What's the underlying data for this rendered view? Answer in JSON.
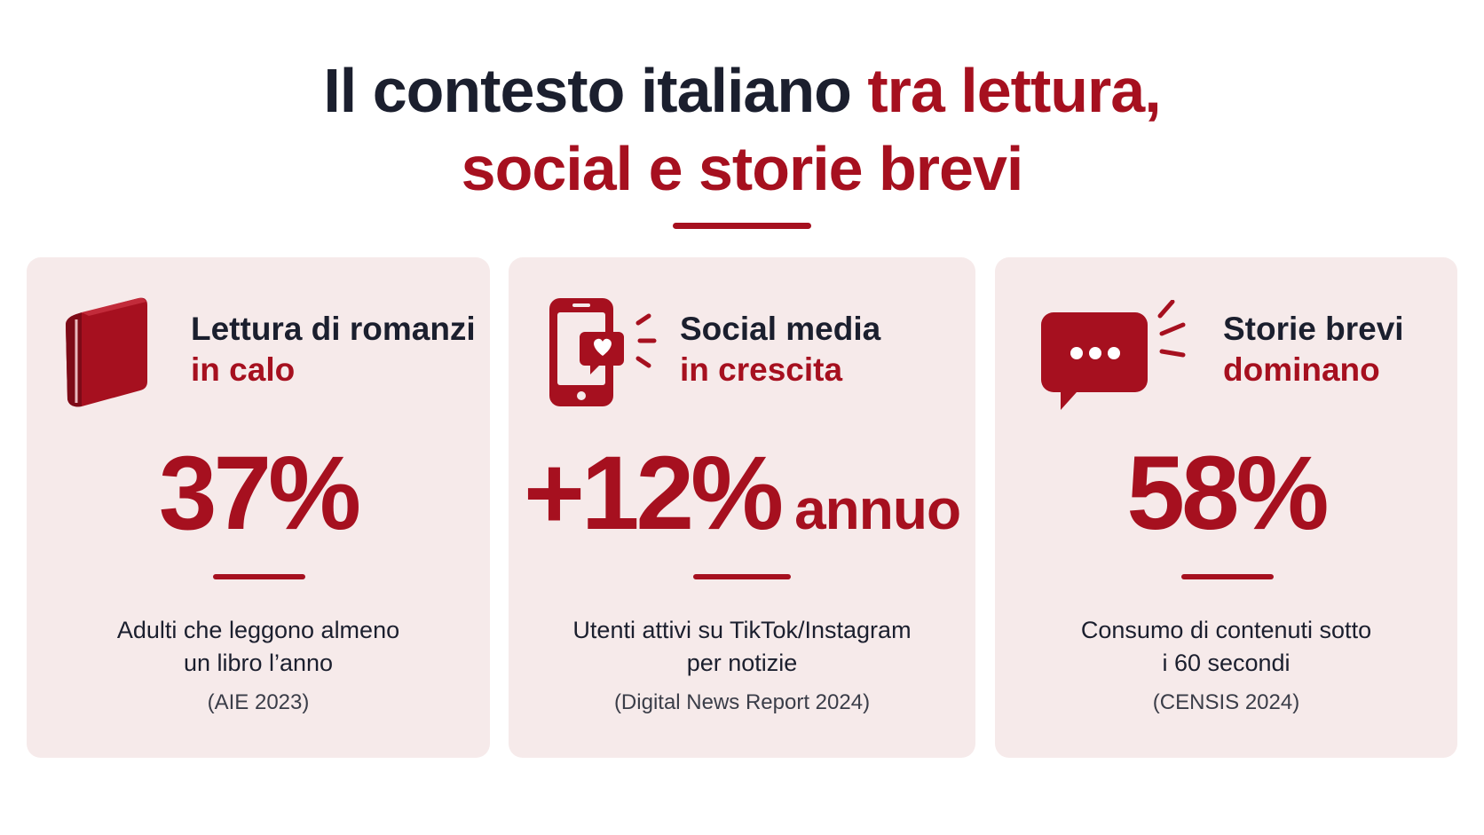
{
  "title": {
    "line1_dark": "Il contesto italiano",
    "line1_red": "tra lettura,",
    "line2_red_a": "social e storie brevi"
  },
  "colors": {
    "accent": "#a6101f",
    "text_dark": "#1b1f2e",
    "card_bg": "#f6eaea"
  },
  "cards": [
    {
      "icon": "book-icon",
      "heading_line1": "Lettura di romanzi",
      "heading_line2": "in calo",
      "stat": "37%",
      "stat_suffix": "",
      "desc_line1": "Adulti che leggono almeno",
      "desc_line2": "un libro l’anno",
      "source": "(AIE 2023)"
    },
    {
      "icon": "phone-heart-icon",
      "heading_line1": "Social media",
      "heading_line2": "in crescita",
      "stat": "+12%",
      "stat_suffix": "annuo",
      "desc_line1": "Utenti attivi su TikTok/Instagram",
      "desc_line2": "per notizie",
      "source": "(Digital News Report 2024)"
    },
    {
      "icon": "speech-bubble-icon",
      "heading_line1": "Storie brevi",
      "heading_line2": "dominano",
      "stat": "58%",
      "stat_suffix": "",
      "desc_line1": "Consumo di contenuti sotto",
      "desc_line2": "i 60 secondi",
      "source": "(CENSIS 2024)"
    }
  ]
}
